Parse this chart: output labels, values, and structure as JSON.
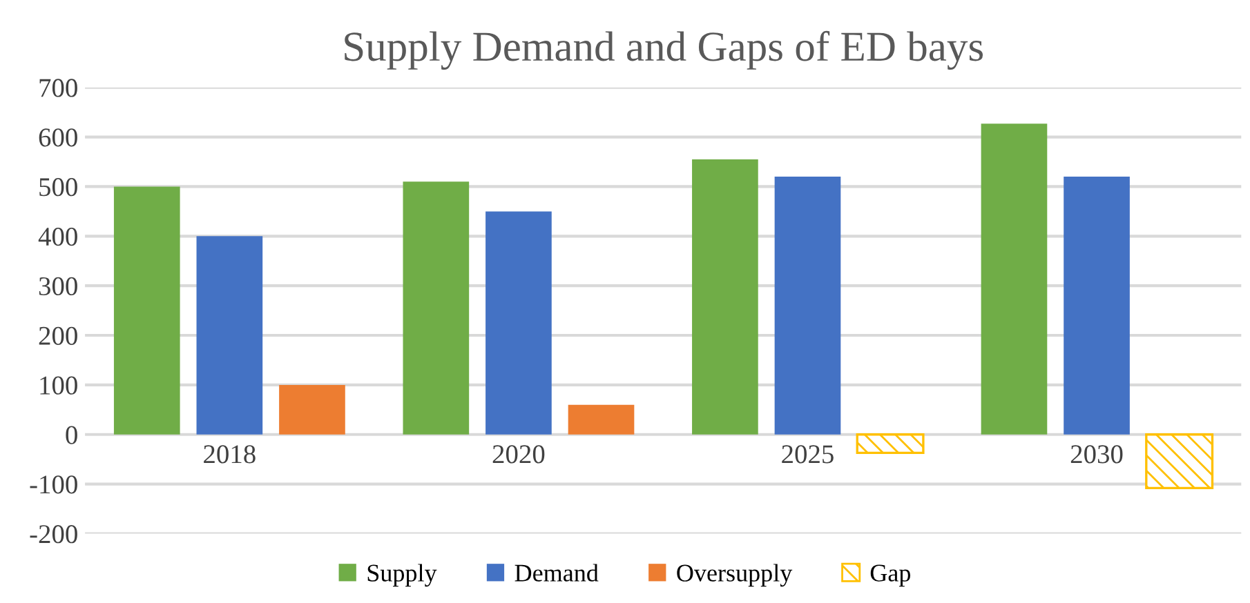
{
  "chart_data": {
    "type": "bar",
    "title": "Supply Demand and Gaps of ED bays",
    "categories": [
      "2018",
      "2020",
      "2025",
      "2030"
    ],
    "series": [
      {
        "name": "Supply",
        "color": "#70ad47",
        "values": [
          500,
          510,
          555,
          627
        ]
      },
      {
        "name": "Demand",
        "color": "#4472c4",
        "values": [
          400,
          450,
          520,
          520
        ]
      },
      {
        "name": "Oversupply",
        "color": "#ed7d31",
        "values": [
          100,
          60,
          null,
          null
        ]
      },
      {
        "name": "Gap",
        "color": "#ffc000",
        "values": [
          null,
          null,
          -37,
          -108
        ]
      }
    ],
    "ylim": [
      -200,
      700
    ],
    "yticks": [
      -200,
      -100,
      0,
      100,
      200,
      300,
      400,
      500,
      600,
      700
    ],
    "grid": "y",
    "legend": "bottom"
  }
}
